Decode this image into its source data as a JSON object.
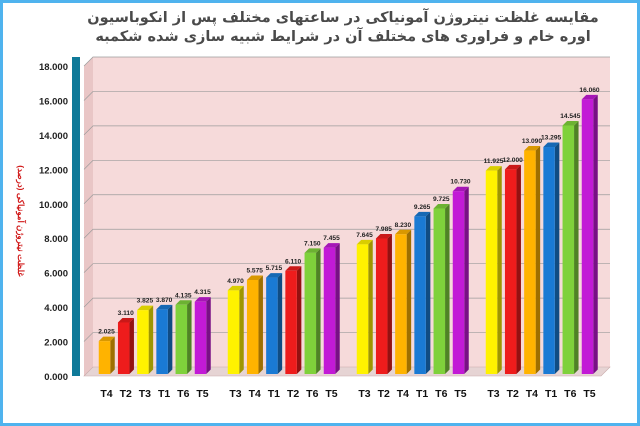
{
  "chart_data": {
    "type": "bar",
    "title": "مقایسه غلظت نیتروژن آمونیاکی در ساعتهای مختلف پس از انکوباسیون اوره خام و فراوری های مختلف آن در شرایط شبیه سازی شده شکمبه",
    "ylabel": "غلظت نیتروژن آمونیاکی (درصد)",
    "xlabel": "",
    "ylim": [
      0,
      18
    ],
    "yticks": [
      "0.000",
      "2.000",
      "4.000",
      "6.000",
      "8.000",
      "10.000",
      "12.000",
      "14.000",
      "16.000",
      "18.000"
    ],
    "grid": true,
    "legend": "none",
    "colors": {
      "T1": "#1a7ad4",
      "T2": "#ee1c1c",
      "T3": "#fff200",
      "T4": "#ffb300",
      "T5": "#c21ad6",
      "T6": "#7fd13b"
    },
    "groups": [
      {
        "categories": [
          "T4",
          "T2",
          "T3",
          "T1",
          "T6",
          "T5"
        ],
        "values": [
          2.025,
          3.11,
          3.825,
          3.87,
          4.135,
          4.315
        ],
        "labels": [
          "2.025",
          "3.110",
          "3.825",
          "3.870",
          "4.135",
          "4.315"
        ]
      },
      {
        "categories": [
          "T3",
          "T4",
          "T1",
          "T2",
          "T6",
          "T5"
        ],
        "values": [
          4.97,
          5.575,
          5.715,
          6.11,
          7.15,
          7.455
        ],
        "labels": [
          "4.970",
          "5.575",
          "5.715",
          "6.110",
          "7.150",
          "7.455"
        ]
      },
      {
        "categories": [
          "T3",
          "T2",
          "T4",
          "T1",
          "T6",
          "T5"
        ],
        "values": [
          7.645,
          7.985,
          8.23,
          9.265,
          9.725,
          10.73
        ],
        "labels": [
          "7.645",
          "7.985",
          "8.230",
          "9.265",
          "9.725",
          "10.730"
        ]
      },
      {
        "categories": [
          "T3",
          "T2",
          "T4",
          "T1",
          "T6",
          "T5"
        ],
        "values": [
          11.925,
          12.0,
          13.09,
          13.295,
          14.545,
          16.06
        ],
        "labels": [
          "11.925",
          "12.000",
          "13.090",
          "13.295",
          "14.545",
          "16.060"
        ]
      }
    ]
  }
}
